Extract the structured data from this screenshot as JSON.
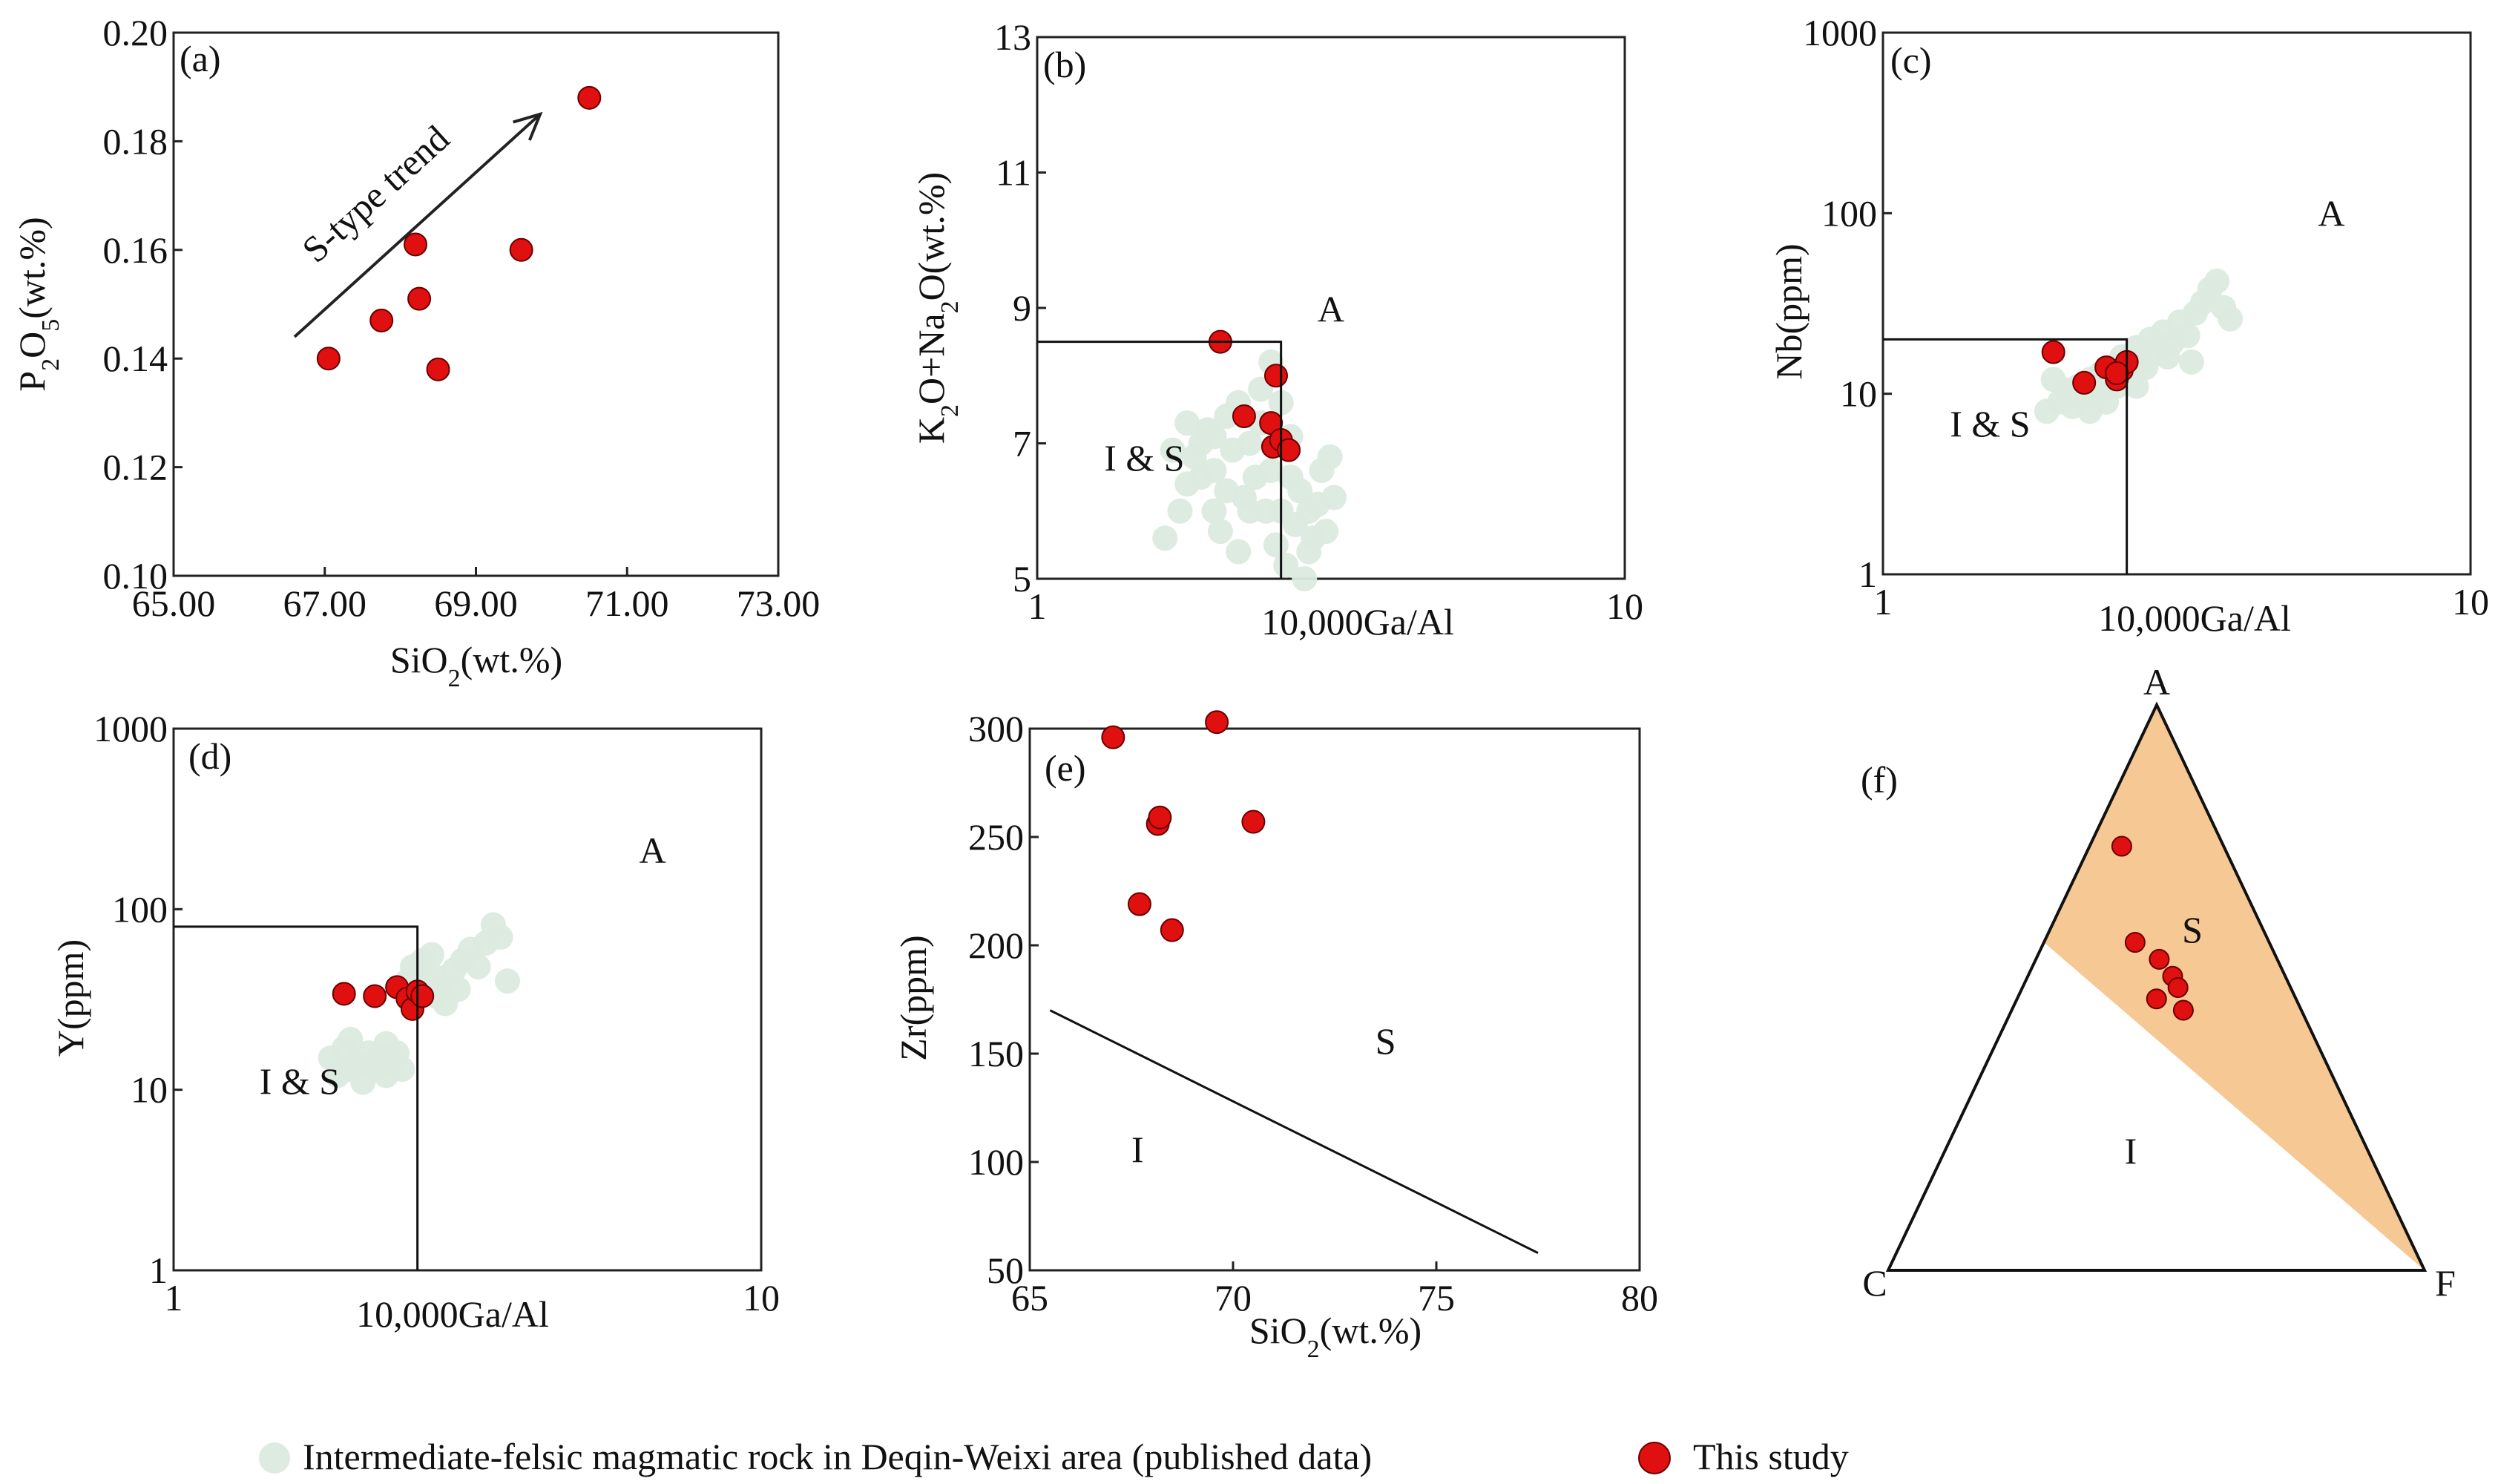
{
  "colors": {
    "published": "#dbeadf",
    "study": "#e01010",
    "study_edge": "#6a0000",
    "triangle_fill": "#f5c894"
  },
  "legend": {
    "published_label": "Intermediate-felsic magmatic rock in Deqin-Weixi area (published data)",
    "study_label": "This study"
  },
  "chart_data": [
    {
      "id": "a",
      "panel_label": "(a)",
      "type": "scatter",
      "xlabel": "SiO2(wt.%)",
      "ylabel": "P2O5(wt.%)",
      "xlim": [
        65,
        73
      ],
      "ylim": [
        0.1,
        0.2
      ],
      "xticks": [
        "65.00",
        "67.00",
        "69.00",
        "71.00",
        "73.00"
      ],
      "yticks": [
        "0.10",
        "0.12",
        "0.14",
        "0.16",
        "0.18",
        "0.20"
      ],
      "trend_label": "S-type trend",
      "trend_arrow": {
        "from": [
          66.6,
          0.144
        ],
        "to": [
          69.85,
          0.185
        ]
      },
      "this_study": [
        [
          67.05,
          0.14
        ],
        [
          67.75,
          0.147
        ],
        [
          68.2,
          0.161
        ],
        [
          68.25,
          0.151
        ],
        [
          68.5,
          0.138
        ],
        [
          69.6,
          0.16
        ],
        [
          70.5,
          0.188
        ]
      ]
    },
    {
      "id": "b",
      "panel_label": "(b)",
      "type": "scatter",
      "xscale": "log",
      "xlim": [
        1,
        10
      ],
      "ylim": [
        5,
        13
      ],
      "xlabel": "10,000Ga/Al",
      "ylabel": "K2O+Na2O(wt.%)",
      "xticks": [
        "1",
        "10"
      ],
      "yticks": [
        "5",
        "7",
        "9",
        "11",
        "13"
      ],
      "regions": [
        {
          "label": "A",
          "at": [
            3.0,
            8.8
          ]
        },
        {
          "label": "I & S",
          "at": [
            1.3,
            6.6
          ]
        }
      ],
      "boundary": [
        [
          1,
          8.5
        ],
        [
          2.6,
          8.5
        ],
        [
          2.6,
          5
        ]
      ],
      "this_study": [
        [
          2.05,
          8.5
        ],
        [
          2.25,
          7.4
        ],
        [
          2.5,
          7.3
        ],
        [
          2.55,
          8.0
        ],
        [
          2.52,
          6.95
        ],
        [
          2.6,
          7.05
        ],
        [
          2.68,
          6.9
        ]
      ],
      "published": [
        [
          1.65,
          5.6
        ],
        [
          1.75,
          6.0
        ],
        [
          1.8,
          6.4
        ],
        [
          1.85,
          6.8
        ],
        [
          1.9,
          7.0
        ],
        [
          1.9,
          6.5
        ],
        [
          1.95,
          7.2
        ],
        [
          2.0,
          6.0
        ],
        [
          2.0,
          6.6
        ],
        [
          2.05,
          5.7
        ],
        [
          2.1,
          6.3
        ],
        [
          2.1,
          7.4
        ],
        [
          2.15,
          6.9
        ],
        [
          2.2,
          7.6
        ],
        [
          2.2,
          5.4
        ],
        [
          2.25,
          6.2
        ],
        [
          2.3,
          7.0
        ],
        [
          2.35,
          6.5
        ],
        [
          2.4,
          7.8
        ],
        [
          2.45,
          6.0
        ],
        [
          2.5,
          8.2
        ],
        [
          2.5,
          6.6
        ],
        [
          2.55,
          5.5
        ],
        [
          2.6,
          7.6
        ],
        [
          2.65,
          5.2
        ],
        [
          2.7,
          6.5
        ],
        [
          2.75,
          5.8
        ],
        [
          2.8,
          6.3
        ],
        [
          2.85,
          5.0
        ],
        [
          2.9,
          6.0
        ],
        [
          2.95,
          5.6
        ],
        [
          3.0,
          6.1
        ],
        [
          3.05,
          6.6
        ],
        [
          3.1,
          5.7
        ],
        [
          3.15,
          6.8
        ],
        [
          1.7,
          6.9
        ],
        [
          1.8,
          7.3
        ],
        [
          2.0,
          7.1
        ],
        [
          2.3,
          6.0
        ],
        [
          2.4,
          7.3
        ],
        [
          2.6,
          6.0
        ],
        [
          2.7,
          7.1
        ],
        [
          2.9,
          5.4
        ],
        [
          3.2,
          6.2
        ]
      ]
    },
    {
      "id": "c",
      "panel_label": "(c)",
      "type": "scatter",
      "xscale": "log",
      "yscale": "log",
      "xlim": [
        1,
        10
      ],
      "ylim": [
        1,
        1000
      ],
      "xlabel": "10,000Ga/Al",
      "ylabel": "Nb(ppm)",
      "xticks": [
        "1",
        "10"
      ],
      "yticks": [
        "1",
        "10",
        "100",
        "1000"
      ],
      "regions": [
        {
          "label": "A",
          "at": [
            5.5,
            85
          ]
        },
        {
          "label": "I & S",
          "at": [
            1.3,
            5.8
          ]
        }
      ],
      "boundary": [
        [
          1,
          20
        ],
        [
          2.6,
          20
        ],
        [
          2.6,
          1
        ]
      ],
      "this_study": [
        [
          1.95,
          17
        ],
        [
          2.2,
          11.5
        ],
        [
          2.4,
          14
        ],
        [
          2.5,
          12
        ],
        [
          2.55,
          13.5
        ],
        [
          2.6,
          15
        ],
        [
          2.5,
          13
        ]
      ],
      "published": [
        [
          1.9,
          8
        ],
        [
          2.0,
          9
        ],
        [
          2.05,
          10.5
        ],
        [
          2.1,
          8.5
        ],
        [
          2.15,
          11
        ],
        [
          2.2,
          9.5
        ],
        [
          2.25,
          12
        ],
        [
          2.3,
          10
        ],
        [
          2.35,
          13
        ],
        [
          2.4,
          9
        ],
        [
          2.45,
          14
        ],
        [
          2.5,
          11
        ],
        [
          2.55,
          16
        ],
        [
          2.6,
          13
        ],
        [
          2.65,
          12
        ],
        [
          2.7,
          18
        ],
        [
          2.75,
          15
        ],
        [
          2.8,
          14
        ],
        [
          2.85,
          20
        ],
        [
          2.9,
          17
        ],
        [
          3.0,
          22
        ],
        [
          3.1,
          19
        ],
        [
          3.2,
          25
        ],
        [
          3.3,
          21
        ],
        [
          3.4,
          28
        ],
        [
          3.5,
          32
        ],
        [
          3.6,
          38
        ],
        [
          3.7,
          42
        ],
        [
          3.8,
          30
        ],
        [
          3.9,
          26
        ],
        [
          1.95,
          12
        ],
        [
          2.25,
          8
        ],
        [
          2.7,
          11
        ],
        [
          3.05,
          16
        ],
        [
          3.35,
          15
        ]
      ]
    },
    {
      "id": "d",
      "panel_label": "(d)",
      "type": "scatter",
      "xscale": "log",
      "yscale": "log",
      "xlim": [
        1,
        10
      ],
      "ylim": [
        1,
        1000
      ],
      "xlabel": "10,000Ga/Al",
      "ylabel": "Y(ppm)",
      "xticks": [
        "1",
        "10"
      ],
      "yticks": [
        "1",
        "10",
        "100",
        "1000"
      ],
      "regions": [
        {
          "label": "A",
          "at": [
            6.2,
            180
          ]
        },
        {
          "label": "I & S",
          "at": [
            1.4,
            9.5
          ]
        }
      ],
      "boundary": [
        [
          1,
          80
        ],
        [
          2.6,
          80
        ],
        [
          2.6,
          1
        ]
      ],
      "this_study": [
        [
          1.95,
          34
        ],
        [
          2.2,
          33
        ],
        [
          2.4,
          37
        ],
        [
          2.5,
          32
        ],
        [
          2.55,
          28
        ],
        [
          2.6,
          35
        ],
        [
          2.65,
          33
        ]
      ],
      "published": [
        [
          1.85,
          15
        ],
        [
          1.9,
          12
        ],
        [
          1.95,
          17
        ],
        [
          2.0,
          13
        ],
        [
          2.05,
          14
        ],
        [
          2.1,
          11
        ],
        [
          2.15,
          16
        ],
        [
          2.2,
          13
        ],
        [
          2.25,
          15
        ],
        [
          2.3,
          12
        ],
        [
          2.35,
          14
        ],
        [
          2.4,
          16
        ],
        [
          2.45,
          13
        ],
        [
          2.5,
          40
        ],
        [
          2.55,
          48
        ],
        [
          2.6,
          44
        ],
        [
          2.65,
          52
        ],
        [
          2.7,
          38
        ],
        [
          2.75,
          56
        ],
        [
          2.8,
          42
        ],
        [
          2.85,
          35
        ],
        [
          2.9,
          30
        ],
        [
          3.0,
          46
        ],
        [
          3.1,
          52
        ],
        [
          3.2,
          60
        ],
        [
          3.3,
          48
        ],
        [
          3.4,
          65
        ],
        [
          3.5,
          82
        ],
        [
          3.6,
          70
        ],
        [
          3.7,
          40
        ],
        [
          2.0,
          19
        ],
        [
          2.3,
          18
        ],
        [
          2.8,
          33
        ],
        [
          3.05,
          36
        ]
      ]
    },
    {
      "id": "e",
      "panel_label": "(e)",
      "type": "scatter",
      "xlim": [
        65,
        80
      ],
      "ylim": [
        50,
        300
      ],
      "xlabel": "SiO2(wt.%)",
      "ylabel": "Zr(ppm)",
      "xticks": [
        "65",
        "70",
        "75",
        "80"
      ],
      "yticks": [
        "50",
        "100",
        "150",
        "200",
        "250",
        "300"
      ],
      "regions": [
        {
          "label": "S",
          "at": [
            73.5,
            150
          ]
        },
        {
          "label": "I",
          "at": [
            67.5,
            100
          ]
        }
      ],
      "boundary": [
        [
          65.5,
          170
        ],
        [
          77.5,
          58
        ]
      ],
      "this_study": [
        [
          67.05,
          296
        ],
        [
          67.7,
          219
        ],
        [
          68.15,
          256
        ],
        [
          68.2,
          259
        ],
        [
          68.5,
          207
        ],
        [
          69.6,
          303
        ],
        [
          70.5,
          257
        ]
      ]
    },
    {
      "id": "f",
      "panel_label": "(f)",
      "type": "ternary",
      "vertices": [
        "A",
        "C",
        "F"
      ],
      "regions": [
        {
          "label": "S"
        },
        {
          "label": "I"
        }
      ],
      "this_study": [
        [
          0.75,
          0.19,
          0.06
        ],
        [
          0.58,
          0.25,
          0.17
        ],
        [
          0.55,
          0.22,
          0.23
        ],
        [
          0.52,
          0.21,
          0.27
        ],
        [
          0.5,
          0.21,
          0.29
        ],
        [
          0.48,
          0.26,
          0.26
        ],
        [
          0.46,
          0.22,
          0.32
        ]
      ]
    }
  ]
}
